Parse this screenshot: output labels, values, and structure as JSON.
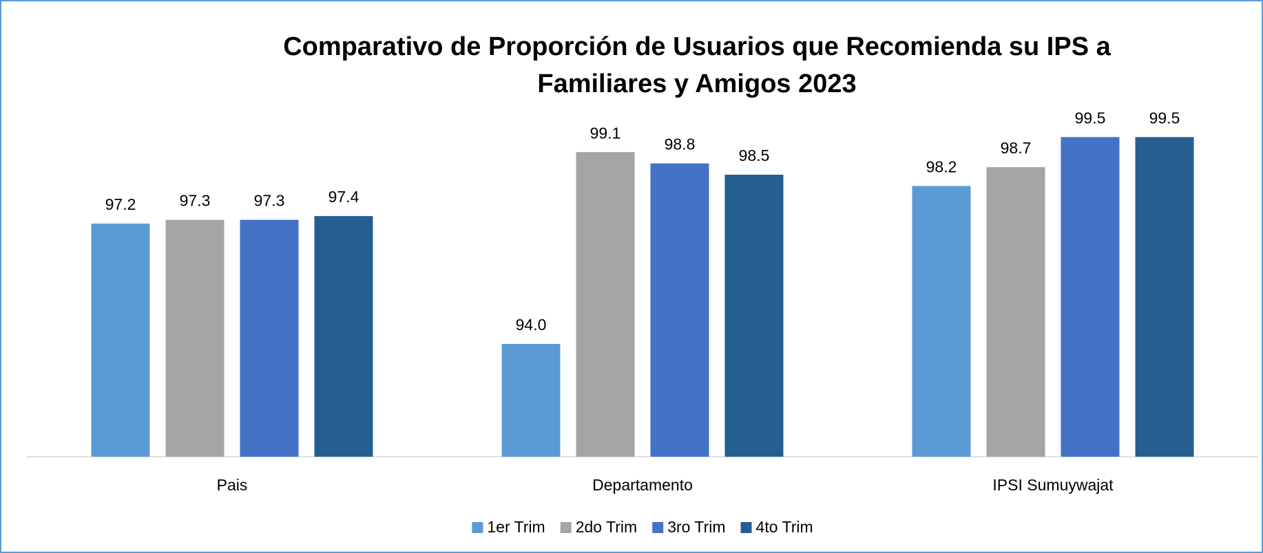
{
  "chart_data": {
    "type": "bar",
    "title": [
      "Comparativo de Proporción de Usuarios que Recomienda su IPS a",
      "Familiares y Amigos 2023"
    ],
    "categories": [
      "Pais",
      "Departamento",
      "IPSI Sumuywajat"
    ],
    "series": [
      {
        "name": "1er Trim",
        "color": "#5b9bd5",
        "values": [
          97.2,
          94.0,
          98.2
        ],
        "value_labels": [
          "97.2",
          "94.0",
          "98.2"
        ]
      },
      {
        "name": "2do Trim",
        "color": "#a5a5a5",
        "values": [
          97.3,
          99.1,
          98.7
        ],
        "value_labels": [
          "97.3",
          "99.1",
          "98.7"
        ]
      },
      {
        "name": "3ro Trim",
        "color": "#4472c4",
        "values": [
          97.3,
          98.8,
          99.5
        ],
        "value_labels": [
          "97.3",
          "98.8",
          "99.5"
        ]
      },
      {
        "name": "4to Trim",
        "color": "#255e91",
        "values": [
          97.4,
          98.5,
          99.5
        ],
        "value_labels": [
          "97.4",
          "98.5",
          "99.5"
        ]
      }
    ],
    "ylim": [
      91,
      100
    ],
    "legend": "bottom"
  }
}
